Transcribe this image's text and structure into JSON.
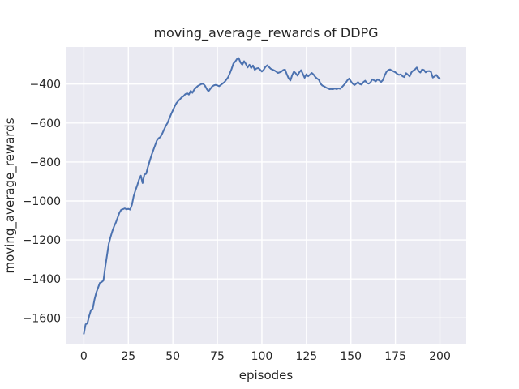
{
  "chart_data": {
    "type": "line",
    "title": "moving_average_rewards of DDPG",
    "xlabel": "episodes",
    "ylabel": "moving_average_rewards",
    "grid": true,
    "legend": null,
    "xlim": [
      -10.2,
      214.8
    ],
    "ylim": [
      -1736,
      -210
    ],
    "x_ticks": [
      {
        "label": "0",
        "value": 0
      },
      {
        "label": "25",
        "value": 25
      },
      {
        "label": "50",
        "value": 50
      },
      {
        "label": "75",
        "value": 75
      },
      {
        "label": "100",
        "value": 100
      },
      {
        "label": "125",
        "value": 125
      },
      {
        "label": "150",
        "value": 150
      },
      {
        "label": "175",
        "value": 175
      },
      {
        "label": "200",
        "value": 200
      }
    ],
    "y_ticks": [
      {
        "label": "−400",
        "value": -400
      },
      {
        "label": "−600",
        "value": -600
      },
      {
        "label": "−800",
        "value": -800
      },
      {
        "label": "−1000",
        "value": -1000
      },
      {
        "label": "−1200",
        "value": -1200
      },
      {
        "label": "−1400",
        "value": -1400
      },
      {
        "label": "−1600",
        "value": -1600
      }
    ],
    "style": {
      "figure_background": "#ffffff",
      "axes_background": "#eaeaf2",
      "grid_color": "#ffffff",
      "line_color": "#4c72b0",
      "text_color": "#262626"
    },
    "series": [
      {
        "name": "moving_average_rewards",
        "x": {
          "start": 0,
          "end": 200,
          "step": 1
        },
        "values": [
          -1681,
          -1633,
          -1628,
          -1590,
          -1560,
          -1553,
          -1505,
          -1470,
          -1445,
          -1420,
          -1416,
          -1408,
          -1340,
          -1280,
          -1220,
          -1185,
          -1155,
          -1130,
          -1110,
          -1085,
          -1060,
          -1045,
          -1042,
          -1038,
          -1043,
          -1040,
          -1044,
          -1020,
          -975,
          -945,
          -920,
          -890,
          -870,
          -908,
          -865,
          -860,
          -825,
          -795,
          -765,
          -740,
          -715,
          -690,
          -678,
          -672,
          -655,
          -635,
          -615,
          -600,
          -577,
          -555,
          -535,
          -515,
          -498,
          -487,
          -478,
          -468,
          -462,
          -452,
          -447,
          -454,
          -435,
          -445,
          -428,
          -419,
          -410,
          -405,
          -400,
          -398,
          -408,
          -425,
          -437,
          -425,
          -413,
          -407,
          -404,
          -407,
          -411,
          -404,
          -397,
          -390,
          -378,
          -366,
          -345,
          -322,
          -295,
          -285,
          -272,
          -267,
          -290,
          -301,
          -283,
          -297,
          -315,
          -301,
          -318,
          -305,
          -327,
          -320,
          -318,
          -326,
          -336,
          -327,
          -312,
          -304,
          -313,
          -322,
          -326,
          -330,
          -336,
          -343,
          -340,
          -336,
          -328,
          -326,
          -350,
          -370,
          -382,
          -355,
          -336,
          -345,
          -357,
          -340,
          -329,
          -348,
          -368,
          -350,
          -360,
          -352,
          -343,
          -351,
          -364,
          -372,
          -378,
          -399,
          -408,
          -412,
          -418,
          -422,
          -426,
          -425,
          -426,
          -423,
          -426,
          -422,
          -424,
          -415,
          -405,
          -395,
          -381,
          -372,
          -386,
          -398,
          -405,
          -398,
          -390,
          -400,
          -403,
          -390,
          -383,
          -395,
          -398,
          -392,
          -376,
          -381,
          -386,
          -376,
          -382,
          -389,
          -379,
          -355,
          -337,
          -328,
          -325,
          -331,
          -335,
          -340,
          -348,
          -353,
          -350,
          -360,
          -364,
          -344,
          -352,
          -361,
          -340,
          -331,
          -325,
          -315,
          -333,
          -341,
          -325,
          -328,
          -340,
          -334,
          -333,
          -338,
          -367,
          -361,
          -353,
          -366,
          -374
        ]
      }
    ]
  }
}
